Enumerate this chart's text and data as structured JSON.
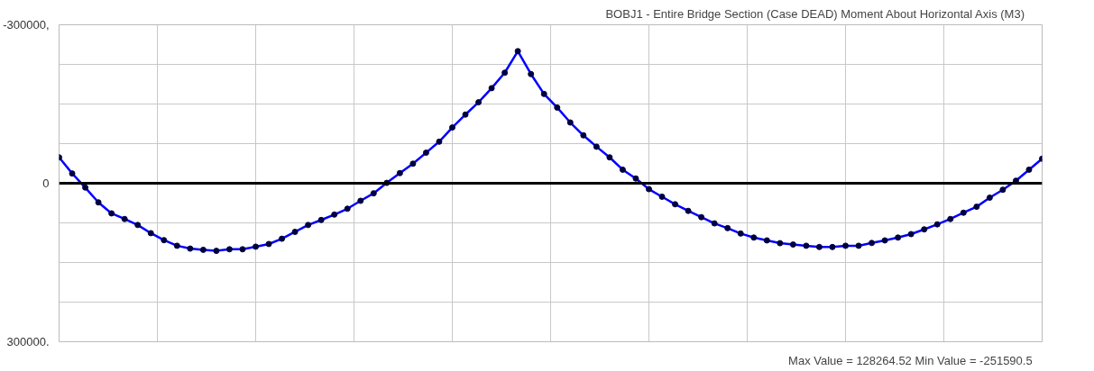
{
  "chart_data": {
    "type": "line",
    "title": "BOBJ1 - Entire Bridge Section   (Case DEAD)   Moment About Horizontal Axis  (M3)",
    "annotations": [
      "Max Value = 128264.52    Min Value = -251590.5"
    ],
    "categories": [
      null,
      null,
      null,
      null,
      null,
      null,
      null,
      null,
      null,
      null,
      null,
      null,
      null,
      null,
      null,
      null,
      null,
      null,
      null,
      null,
      null,
      null,
      null,
      null,
      null,
      null,
      null,
      null,
      null,
      null,
      null,
      null,
      null,
      null,
      null,
      null,
      null,
      null,
      null,
      null,
      null,
      null,
      null,
      null,
      null,
      null,
      null,
      null,
      null,
      null,
      null,
      null,
      null,
      null,
      null,
      null,
      null,
      null,
      null,
      null,
      null,
      null,
      null,
      null,
      null,
      null,
      null,
      null,
      null,
      null,
      null,
      null,
      null,
      null,
      null,
      null
    ],
    "series": [
      {
        "color": "#0000ff",
        "values": [
          -49000,
          -18500,
          8200,
          36200,
          57000,
          67700,
          79000,
          94500,
          107700,
          118300,
          123700,
          126000,
          128000,
          125000,
          125000,
          120000,
          115000,
          105000,
          92000,
          79000,
          69500,
          59300,
          48200,
          33200,
          19000,
          -700,
          -19200,
          -37000,
          -57800,
          -78700,
          -105500,
          -130000,
          -153300,
          -180000,
          -209200,
          -250000,
          -206700,
          -169000,
          -143300,
          -115000,
          -90700,
          -69200,
          -49000,
          -25700,
          -9000,
          11200,
          25500,
          39800,
          52300,
          64200,
          76000,
          85000,
          95200,
          102800,
          108200,
          113500,
          116000,
          118300,
          120700,
          120700,
          118300,
          118300,
          113000,
          108200,
          102800,
          96300,
          87300,
          77800,
          67700,
          55800,
          44500,
          27300,
          12300,
          -4800,
          -25700,
          -46500
        ]
      }
    ],
    "marker": "circle",
    "line_style": "solid",
    "ylim": [
      300000,
      -300000
    ],
    "yticks": [
      {
        "value": -300000,
        "label": "-300000,"
      },
      {
        "value": -225000,
        "label": null
      },
      {
        "value": -150000,
        "label": null
      },
      {
        "value": -75000,
        "label": null
      },
      {
        "value": 0,
        "label": "0"
      },
      {
        "value": 75000,
        "label": null
      },
      {
        "value": 150000,
        "label": null
      },
      {
        "value": 225000,
        "label": null
      },
      {
        "value": 300000,
        "label": "300000."
      }
    ],
    "ref_lines": [
      {
        "axis": "y",
        "value": 0,
        "color": "#000000"
      }
    ],
    "grid": true,
    "tick_labels": "y"
  }
}
